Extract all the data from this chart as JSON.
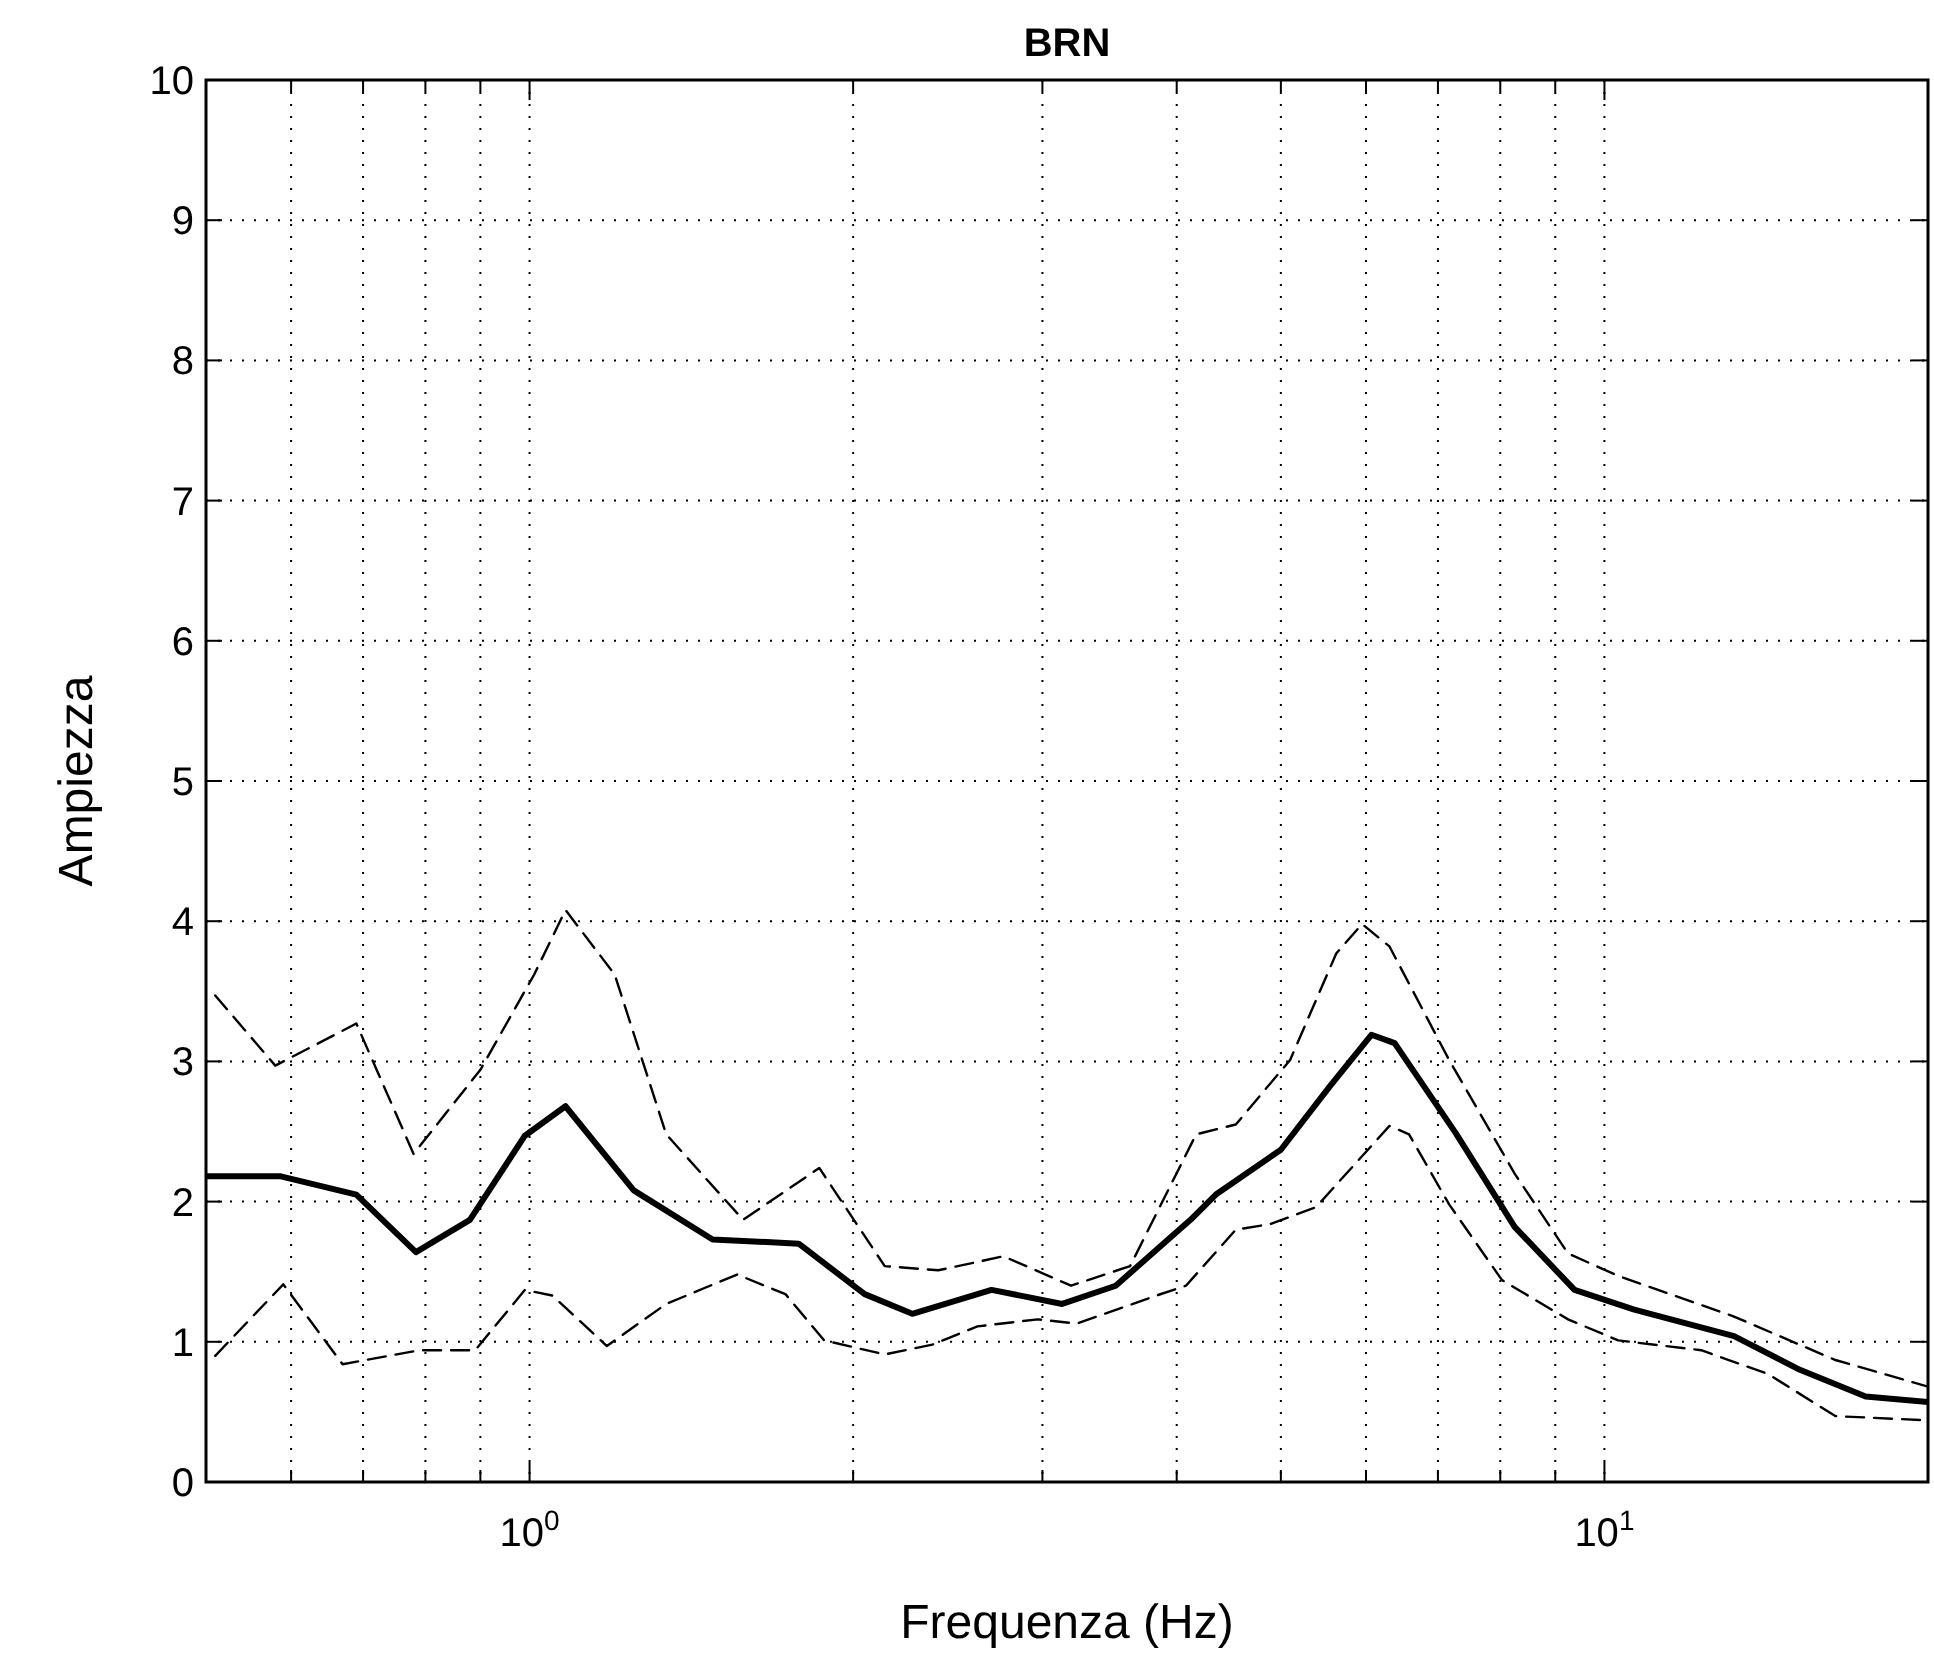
{
  "chart_data": {
    "type": "line",
    "title": "BRN",
    "xlabel": "Frequenza (Hz)",
    "ylabel": "Ampiezza",
    "log": "x",
    "xlim": [
      0.5,
      20
    ],
    "xticks": [
      {
        "value": 0.5,
        "label": null
      },
      {
        "value": 0.6,
        "label": null
      },
      {
        "value": 0.7,
        "label": null
      },
      {
        "value": 0.8,
        "label": null
      },
      {
        "value": 0.9,
        "label": null
      },
      {
        "value": 1,
        "label": "10$^{0}$"
      },
      {
        "value": 2,
        "label": null
      },
      {
        "value": 3,
        "label": null
      },
      {
        "value": 4,
        "label": null
      },
      {
        "value": 5,
        "label": null
      },
      {
        "value": 6,
        "label": null
      },
      {
        "value": 7,
        "label": null
      },
      {
        "value": 8,
        "label": null
      },
      {
        "value": 9,
        "label": null
      },
      {
        "value": 10,
        "label": "10$^{1}$"
      },
      {
        "value": 20,
        "label": null
      }
    ],
    "ylim": [
      0,
      10
    ],
    "yticks": [
      0,
      1,
      2,
      3,
      4,
      5,
      6,
      7,
      8,
      9,
      10
    ],
    "grid": true,
    "series": [
      {
        "color": "#000000",
        "line_style": "dashed",
        "x": [
          0.51,
          0.58,
          0.69,
          0.78,
          0.9,
          1.01,
          1.08,
          1.2,
          1.34,
          1.58,
          1.86,
          2.14,
          2.4,
          2.76,
          3.19,
          3.62,
          4.17,
          4.54,
          5.1,
          5.63,
          5.95,
          6.31,
          7.17,
          8.25,
          9.25,
          10.3,
          13.2,
          16.4,
          20
        ],
        "values": [
          3.47,
          2.97,
          3.27,
          2.34,
          2.94,
          3.62,
          4.08,
          3.62,
          2.48,
          1.87,
          2.24,
          1.54,
          1.51,
          1.61,
          1.4,
          1.54,
          2.48,
          2.55,
          3.01,
          3.77,
          3.98,
          3.82,
          3.01,
          2.2,
          1.63,
          1.47,
          1.18,
          0.87,
          0.68
        ]
      },
      {
        "color": "#000000",
        "line_style": "solid",
        "x": [
          0.5,
          0.587,
          0.69,
          0.784,
          0.88,
          0.99,
          1.08,
          1.25,
          1.48,
          1.78,
          2.05,
          2.27,
          2.69,
          3.13,
          3.51,
          4.12,
          4.35,
          5.0,
          5.55,
          6.07,
          6.38,
          7.27,
          8.25,
          9.38,
          10.66,
          13.2,
          15.2,
          17.5,
          20
        ],
        "values": [
          2.18,
          2.18,
          2.05,
          1.64,
          1.87,
          2.47,
          2.68,
          2.08,
          1.73,
          1.7,
          1.34,
          1.2,
          1.37,
          1.27,
          1.4,
          1.87,
          2.05,
          2.37,
          2.82,
          3.19,
          3.13,
          2.49,
          1.82,
          1.37,
          1.23,
          1.04,
          0.8,
          0.61,
          0.57
        ]
      },
      {
        "color": "#000000",
        "line_style": "dashed",
        "x": [
          0.51,
          0.59,
          0.67,
          0.79,
          0.89,
          0.99,
          1.05,
          1.18,
          1.34,
          1.56,
          1.73,
          1.88,
          2.14,
          2.37,
          2.61,
          2.97,
          3.23,
          3.83,
          4.08,
          4.54,
          4.89,
          5.39,
          6.31,
          6.58,
          7.17,
          8.03,
          9.25,
          10.3,
          12.3,
          14.2,
          16.4,
          20
        ],
        "values": [
          0.9,
          1.41,
          0.84,
          0.94,
          0.94,
          1.37,
          1.33,
          0.97,
          1.27,
          1.48,
          1.34,
          1.01,
          0.91,
          0.98,
          1.11,
          1.16,
          1.13,
          1.33,
          1.4,
          1.8,
          1.84,
          1.96,
          2.54,
          2.48,
          1.98,
          1.44,
          1.16,
          1.01,
          0.94,
          0.77,
          0.47,
          0.44
        ]
      }
    ]
  }
}
